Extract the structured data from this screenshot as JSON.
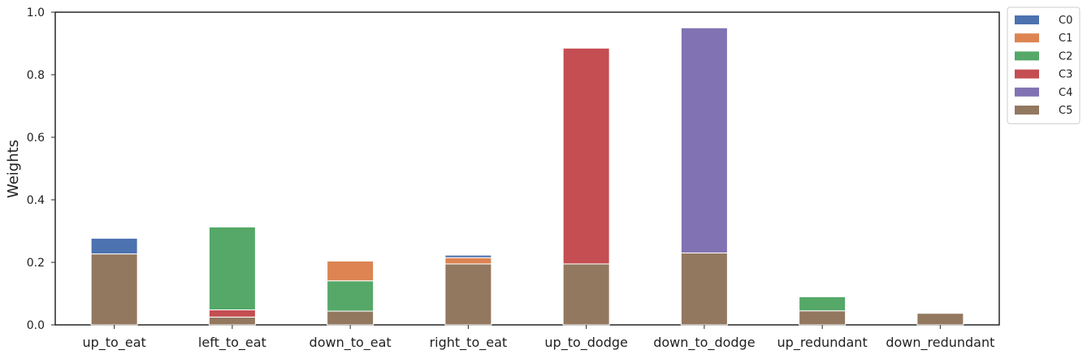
{
  "chart_data": {
    "type": "bar",
    "stacked": true,
    "categories": [
      "up_to_eat",
      "left_to_eat",
      "down_to_eat",
      "right_to_eat",
      "up_to_dodge",
      "down_to_dodge",
      "up_redundant",
      "down_redundant"
    ],
    "stack_order": [
      "C5",
      "C3",
      "C2",
      "C1",
      "C0",
      "C4"
    ],
    "series": [
      {
        "name": "C0",
        "color": "#4C72B0",
        "values": [
          0.05,
          0,
          0,
          0.008,
          0,
          0,
          0,
          0
        ]
      },
      {
        "name": "C1",
        "color": "#DD8452",
        "values": [
          0,
          0,
          0.063,
          0.02,
          0,
          0,
          0,
          0
        ]
      },
      {
        "name": "C2",
        "color": "#55A868",
        "values": [
          0,
          0.265,
          0.097,
          0,
          0,
          0,
          0.045,
          0
        ]
      },
      {
        "name": "C3",
        "color": "#C44E52",
        "values": [
          0,
          0.023,
          0,
          0,
          0.69,
          0,
          0,
          0
        ]
      },
      {
        "name": "C4",
        "color": "#8172B3",
        "values": [
          0,
          0,
          0,
          0,
          0,
          0.72,
          0,
          0
        ]
      },
      {
        "name": "C5",
        "color": "#937860",
        "values": [
          0.227,
          0.025,
          0.044,
          0.195,
          0.195,
          0.23,
          0.045,
          0.037
        ]
      }
    ],
    "title": "",
    "xlabel": "",
    "ylabel": "Weights",
    "ylim": [
      0,
      1.0
    ],
    "yticks": [
      0.0,
      0.2,
      0.4,
      0.6,
      0.8,
      1.0
    ],
    "grid": false,
    "legend": {
      "placement": "outside-top-right",
      "entries": [
        "C0",
        "C1",
        "C2",
        "C3",
        "C4",
        "C5"
      ]
    }
  }
}
